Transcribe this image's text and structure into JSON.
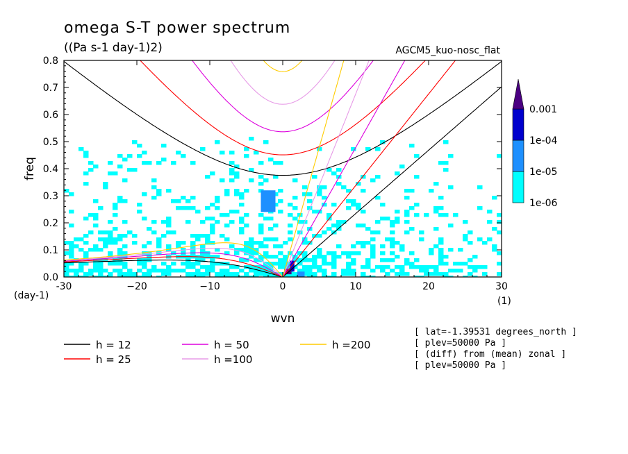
{
  "chart_data": {
    "type": "contour",
    "title": "omega S-T power spectrum",
    "subtitle": "((Pa s-1 day-1)2)",
    "source_label": "AGCM5_kuo-nosc_flat",
    "xlabel": "wvn",
    "xunit": "(1)",
    "ylabel": "freq",
    "yunit": "(day-1)",
    "xlim": [
      -30,
      30
    ],
    "ylim": [
      0,
      0.8
    ],
    "x_ticks": [
      -30,
      -20,
      -10,
      0,
      10,
      20,
      30
    ],
    "x_tick_labels": [
      "-30",
      "−20",
      "−10",
      "0",
      "10",
      "20",
      "30"
    ],
    "y_ticks": [
      0.0,
      0.1,
      0.2,
      0.3,
      0.4,
      0.5,
      0.6,
      0.7,
      0.8
    ],
    "y_tick_labels": [
      "0.0",
      "0.1",
      "0.2",
      "0.3",
      "0.4",
      "0.5",
      "0.6",
      "0.7",
      "0.8"
    ],
    "colorbar": {
      "levels": [
        "1e-06",
        "1e-05",
        "1e-04",
        "0.001"
      ],
      "colors": [
        "#00ffff",
        "#1e90ff",
        "#0000cd",
        "#4b0082"
      ]
    },
    "dispersion_curves": [
      {
        "label": "h = 12",
        "h": 12,
        "color": "#000000"
      },
      {
        "label": "h = 25",
        "h": 25,
        "color": "#ff0000"
      },
      {
        "label": "h = 50",
        "h": 50,
        "color": "#dd00dd"
      },
      {
        "label": "h =100",
        "h": 100,
        "color": "#e79be7"
      },
      {
        "label": "h =200",
        "h": 200,
        "color": "#ffcc00"
      }
    ],
    "annotations": [
      "[ lat=-1.39531 degrees_north ]",
      "[ plev=50000 Pa ]",
      "[ (diff) from (mean) zonal ]",
      "[ plev=50000 Pa ]"
    ]
  }
}
